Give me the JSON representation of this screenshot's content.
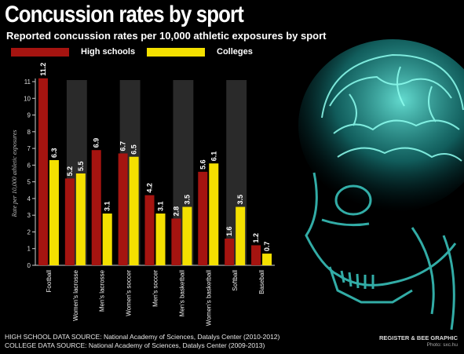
{
  "chart_data": {
    "type": "bar",
    "title": "Concussion rates by sport",
    "subtitle": "Reported concussion rates per 10,000 athletic exposures by sport",
    "ylabel": "Rate per 10,000 athletic exposures",
    "ylim": [
      0,
      11
    ],
    "yticks": [
      0,
      1,
      2,
      3,
      4,
      5,
      6,
      7,
      8,
      9,
      10,
      11
    ],
    "categories": [
      "Football",
      "Women's lacrosse",
      "Men's lacrosse",
      "Women's soccer",
      "Men's soccer",
      "Men's basketball",
      "Women's basketball",
      "Softball",
      "Baseball"
    ],
    "series": [
      {
        "name": "High schools",
        "color": "#a51410",
        "values": [
          11.2,
          5.2,
          6.9,
          6.7,
          4.2,
          2.8,
          5.6,
          1.6,
          1.2
        ]
      },
      {
        "name": "Colleges",
        "color": "#f4e000",
        "values": [
          6.3,
          5.5,
          3.1,
          6.5,
          3.1,
          3.5,
          6.1,
          3.5,
          0.7
        ]
      }
    ],
    "value_labels": {
      "High schools": [
        "11.2",
        "5.2",
        "6.9",
        "6.7",
        "4.2",
        "2.8",
        "5.6",
        "1.6",
        "1.2"
      ],
      "Colleges": [
        "6.3",
        "5.5",
        "3.1",
        "6.5",
        "3.1",
        "3.5",
        "6.1",
        "3.5",
        "0.7"
      ]
    },
    "shaded_bands": [
      "Women's lacrosse",
      "Women's soccer",
      "Men's basketball",
      "Softball"
    ],
    "grid": false,
    "legend": "top-left"
  },
  "footer": {
    "high_school_source": "HIGH SCHOOL DATA SOURCE: National Academy of Sciences, Datalys Center (2010-2012)",
    "college_source": "COLLEGE DATA SOURCE: National Academy of Sciences, Datalys Center (2009-2013)",
    "credit": "REGISTER & BEE GRAPHIC",
    "photo_credit": "Photo: sxc.hu"
  }
}
